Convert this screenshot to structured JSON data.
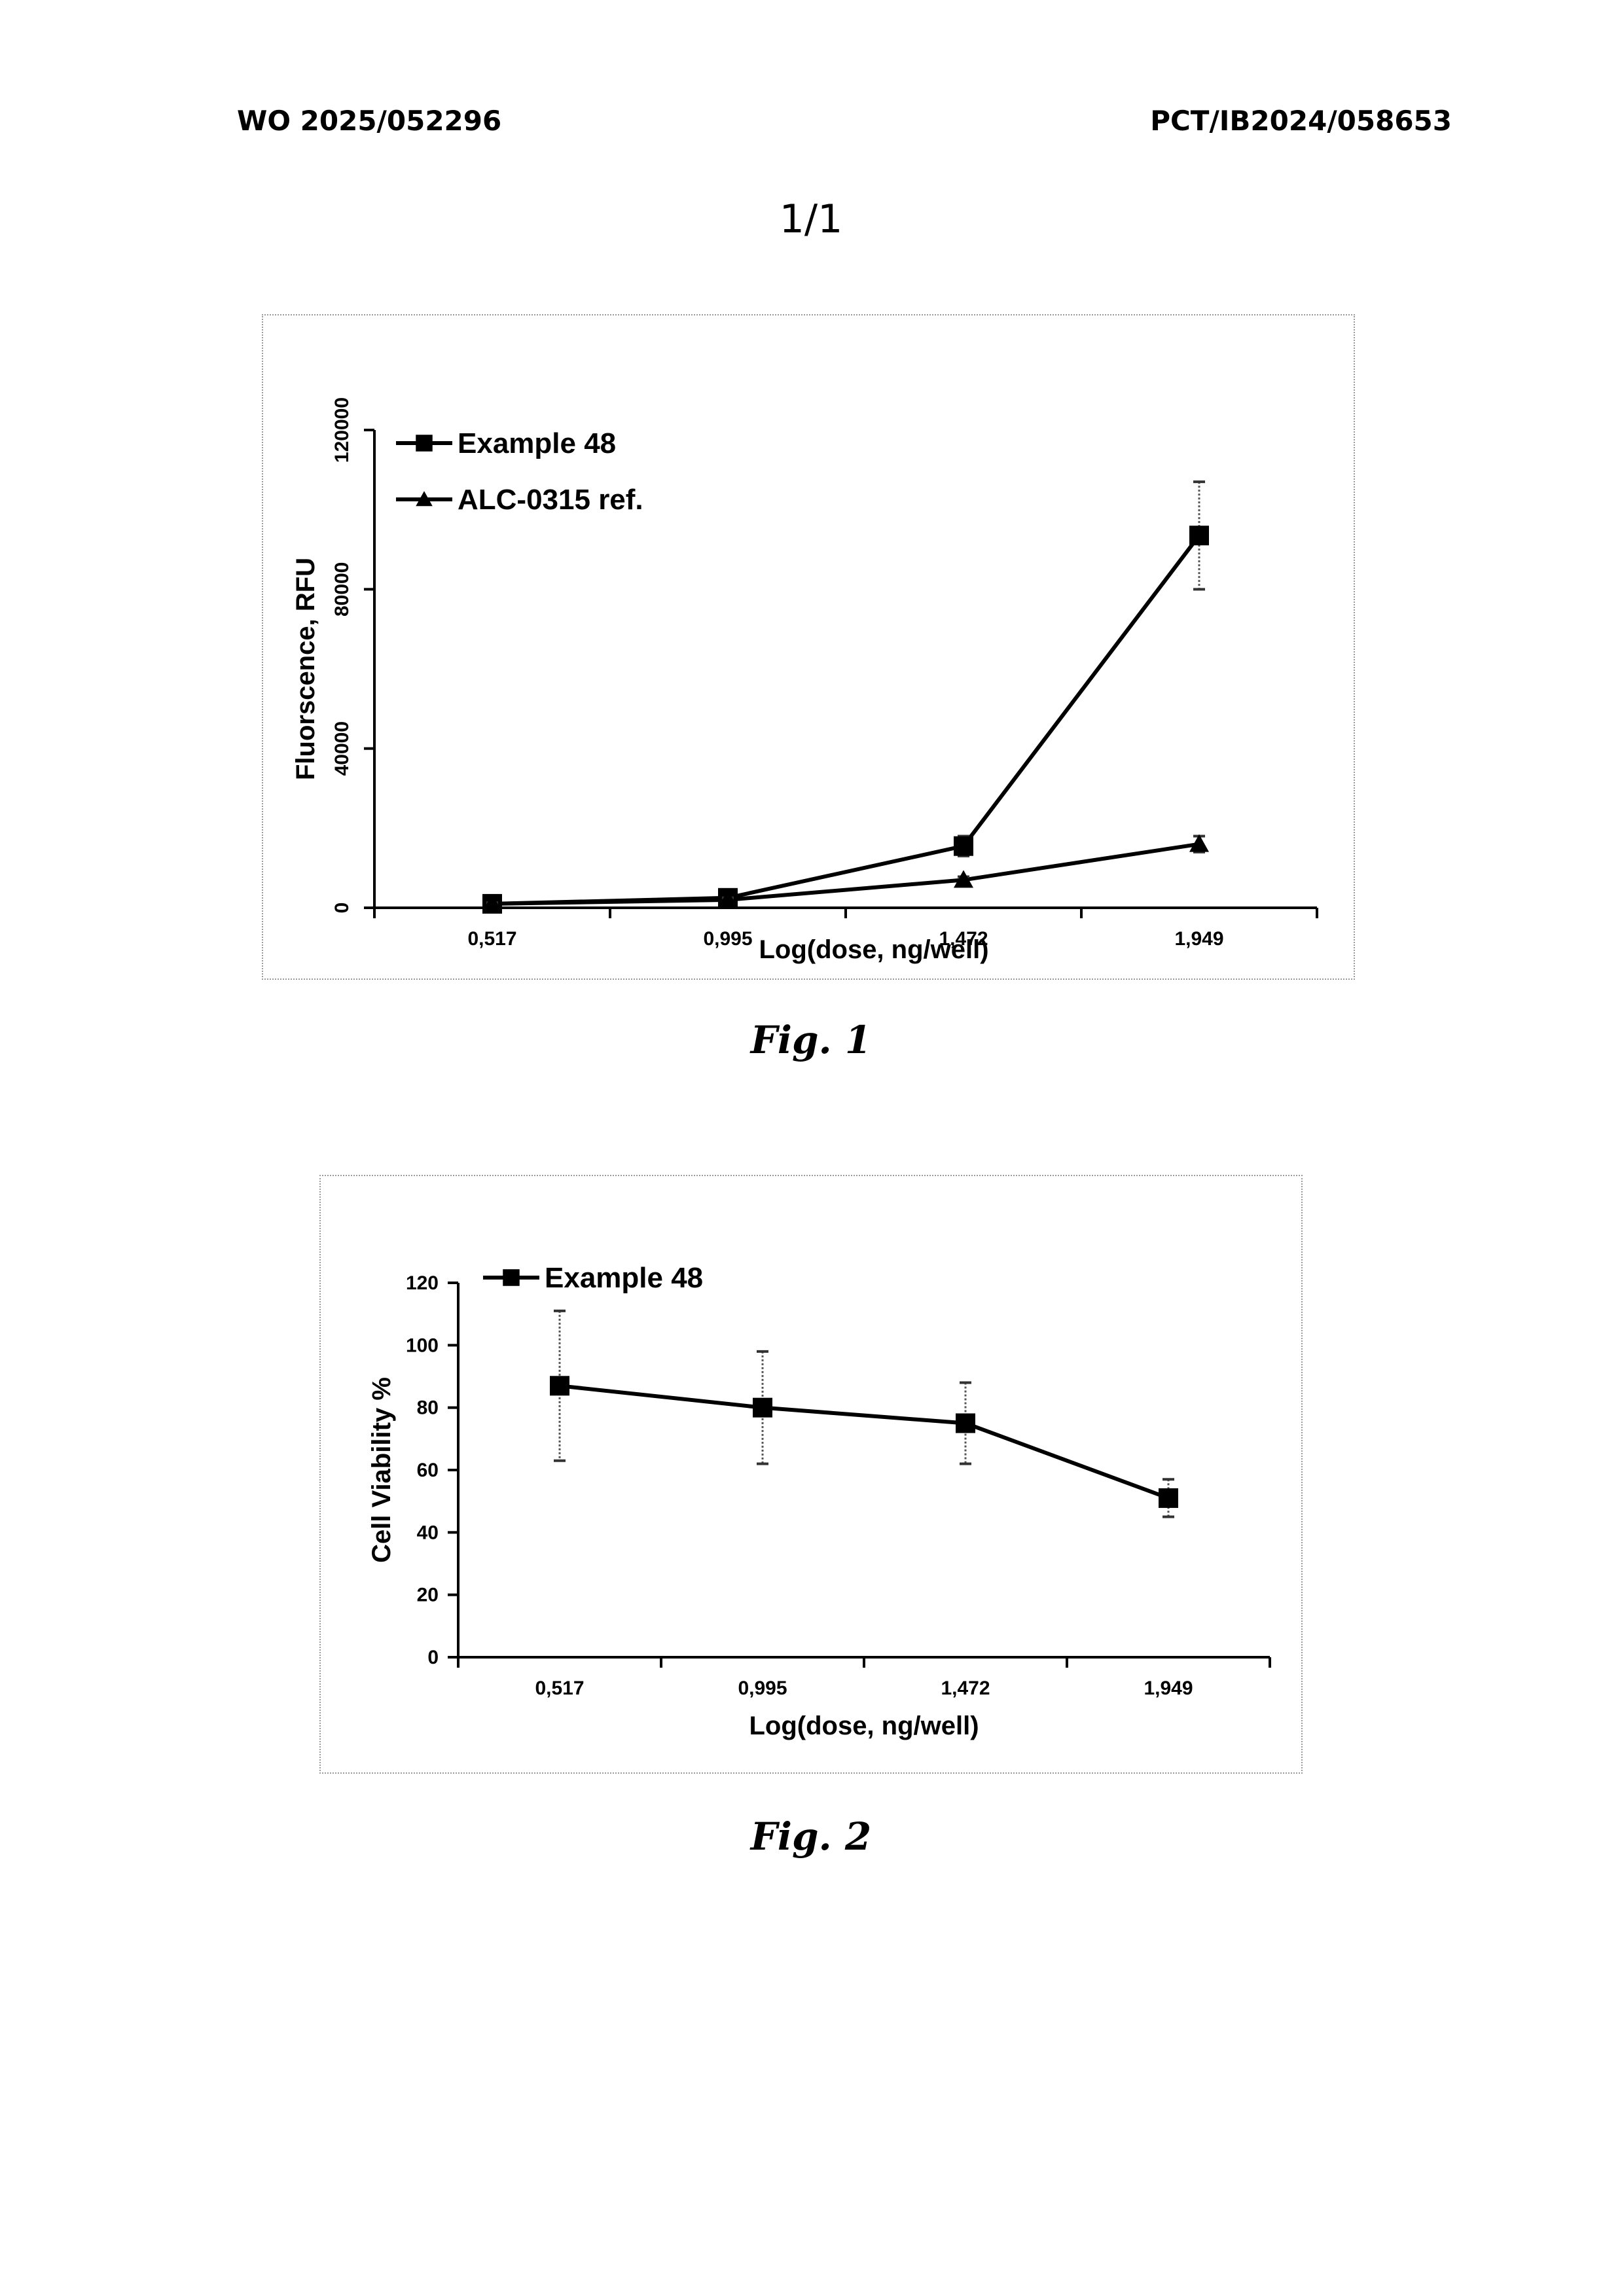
{
  "header": {
    "publication_number": "WO 2025/052296",
    "application_number": "PCT/IB2024/058653",
    "page_number": "1/1"
  },
  "figures": [
    {
      "caption": "Fig. 1"
    },
    {
      "caption": "Fig. 2"
    }
  ],
  "chart_data": [
    {
      "type": "line",
      "title": "",
      "xlabel": "Log(dose, ng/well)",
      "ylabel": "Fluorscence, RFU",
      "categories": [
        "0,517",
        "0,995",
        "1,472",
        "1,949"
      ],
      "ylim": [
        0,
        120000
      ],
      "yticks": [
        "0",
        "40000",
        "80000",
        "120000"
      ],
      "legend_position": "top-left",
      "grid": false,
      "series": [
        {
          "name": "Example 48",
          "marker": "square",
          "values": [
            1000,
            2500,
            15500,
            93500
          ],
          "errors": [
            500,
            800,
            2500,
            13500
          ]
        },
        {
          "name": "ALC-0315 ref.",
          "marker": "triangle",
          "values": [
            1000,
            2000,
            7000,
            16000
          ],
          "errors": [
            300,
            500,
            800,
            2000
          ]
        }
      ]
    },
    {
      "type": "line",
      "title": "",
      "xlabel": "Log(dose, ng/well)",
      "ylabel": "Cell Viability %",
      "categories": [
        "0,517",
        "0,995",
        "1,472",
        "1,949"
      ],
      "ylim": [
        0,
        120
      ],
      "yticks": [
        "0",
        "20",
        "40",
        "60",
        "80",
        "100",
        "120"
      ],
      "legend_position": "top-left",
      "grid": false,
      "series": [
        {
          "name": "Example 48",
          "marker": "square",
          "values": [
            87,
            80,
            75,
            51
          ],
          "errors": [
            24,
            18,
            13,
            6
          ]
        }
      ]
    }
  ]
}
